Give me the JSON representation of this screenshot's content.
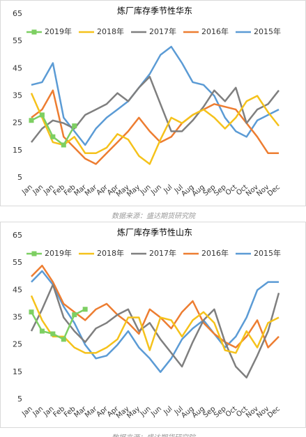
{
  "chart_data": [
    {
      "type": "line",
      "title": "炼厂库存季节性华东",
      "note": "数据来源：盛达期货研究院",
      "categories": [
        "Jan",
        "Jan",
        "Jan",
        "Feb",
        "Feb",
        "Mar",
        "Mar",
        "Apr",
        "Apr",
        "May",
        "May",
        "Jun",
        "Jun",
        "Jul",
        "Jul",
        "Aug",
        "Aug",
        "Sep",
        "Sep",
        "Oct",
        "Oct",
        "Nov",
        "Nov",
        "Dec"
      ],
      "ylim": [
        5,
        65
      ],
      "yticks": [
        5,
        15,
        25,
        35,
        45,
        55,
        65
      ],
      "grid": false,
      "series": [
        {
          "name": "2019年",
          "color": "#7dcf62",
          "marker": "square",
          "values": [
            26,
            28,
            20,
            17,
            24,
            null,
            null,
            null,
            null,
            null,
            null,
            null,
            null,
            null,
            null,
            null,
            null,
            null,
            null,
            null,
            null,
            null,
            null,
            null
          ]
        },
        {
          "name": "2018年",
          "color": "#f5c21b",
          "values": [
            36,
            27,
            18,
            17,
            20,
            14,
            14,
            16,
            21,
            19,
            13,
            10,
            19,
            27,
            25,
            28,
            30,
            27,
            23,
            27,
            33,
            35,
            29,
            24
          ]
        },
        {
          "name": "2017年",
          "color": "#7f7f7f",
          "values": [
            18,
            23,
            26,
            25,
            23,
            28,
            30,
            32,
            36,
            33,
            38,
            42,
            32,
            22,
            22,
            26,
            31,
            37,
            33,
            38,
            25,
            30,
            32,
            37
          ]
        },
        {
          "name": "2016年",
          "color": "#ed7d31",
          "values": [
            27,
            30,
            37,
            20,
            16,
            12,
            10,
            14,
            18,
            22,
            27,
            22,
            18,
            20,
            25,
            28,
            30,
            32,
            31,
            30,
            25,
            20,
            14,
            14
          ]
        },
        {
          "name": "2015年",
          "color": "#5b9bd5",
          "values": [
            39,
            40,
            47,
            27,
            22,
            17,
            23,
            27,
            30,
            33,
            38,
            43,
            50,
            53,
            47,
            40,
            39,
            35,
            27,
            22,
            20,
            26,
            28,
            30
          ]
        }
      ]
    },
    {
      "type": "line",
      "title": "炼厂库存季节性山东",
      "note": "数据来源：盛达期货研究院",
      "categories": [
        "Jan",
        "Jan",
        "Jan",
        "Feb",
        "Feb",
        "Mar",
        "Mar",
        "Apr",
        "Apr",
        "May",
        "May",
        "Jun",
        "Jun",
        "Jul",
        "Jul",
        "Aug",
        "Aug",
        "Sep",
        "Sep",
        "Oct",
        "Oct",
        "Nov",
        "Nov",
        "Dec"
      ],
      "ylim": [
        5,
        65
      ],
      "yticks": [
        5,
        15,
        25,
        35,
        45,
        55,
        65
      ],
      "grid": false,
      "series": [
        {
          "name": "2019年",
          "color": "#7dcf62",
          "marker": "square",
          "values": [
            37,
            30,
            29,
            27,
            36,
            38,
            null,
            null,
            null,
            null,
            null,
            null,
            null,
            null,
            null,
            null,
            null,
            null,
            null,
            null,
            null,
            null,
            null,
            null
          ]
        },
        {
          "name": "2018年",
          "color": "#f5c21b",
          "values": [
            43,
            34,
            28,
            28,
            24,
            22,
            22,
            24,
            27,
            35,
            35,
            23,
            35,
            34,
            28,
            34,
            37,
            33,
            23,
            22,
            30,
            24,
            33,
            35
          ]
        },
        {
          "name": "2017年",
          "color": "#7f7f7f",
          "values": [
            30,
            38,
            47,
            35,
            30,
            26,
            31,
            33,
            36,
            38,
            30,
            33,
            27,
            22,
            17,
            26,
            34,
            38,
            26,
            17,
            13,
            21,
            30,
            44
          ]
        },
        {
          "name": "2016年",
          "color": "#ed7d31",
          "values": [
            50,
            54,
            48,
            40,
            37,
            34,
            38,
            40,
            36,
            33,
            29,
            38,
            35,
            31,
            37,
            41,
            33,
            29,
            26,
            24,
            28,
            34,
            24,
            28
          ]
        },
        {
          "name": "2015年",
          "color": "#5b9bd5",
          "values": [
            48,
            52,
            47,
            39,
            33,
            25,
            20,
            21,
            25,
            30,
            24,
            20,
            15,
            20,
            27,
            31,
            34,
            29,
            24,
            28,
            35,
            45,
            48,
            48
          ]
        }
      ]
    }
  ]
}
